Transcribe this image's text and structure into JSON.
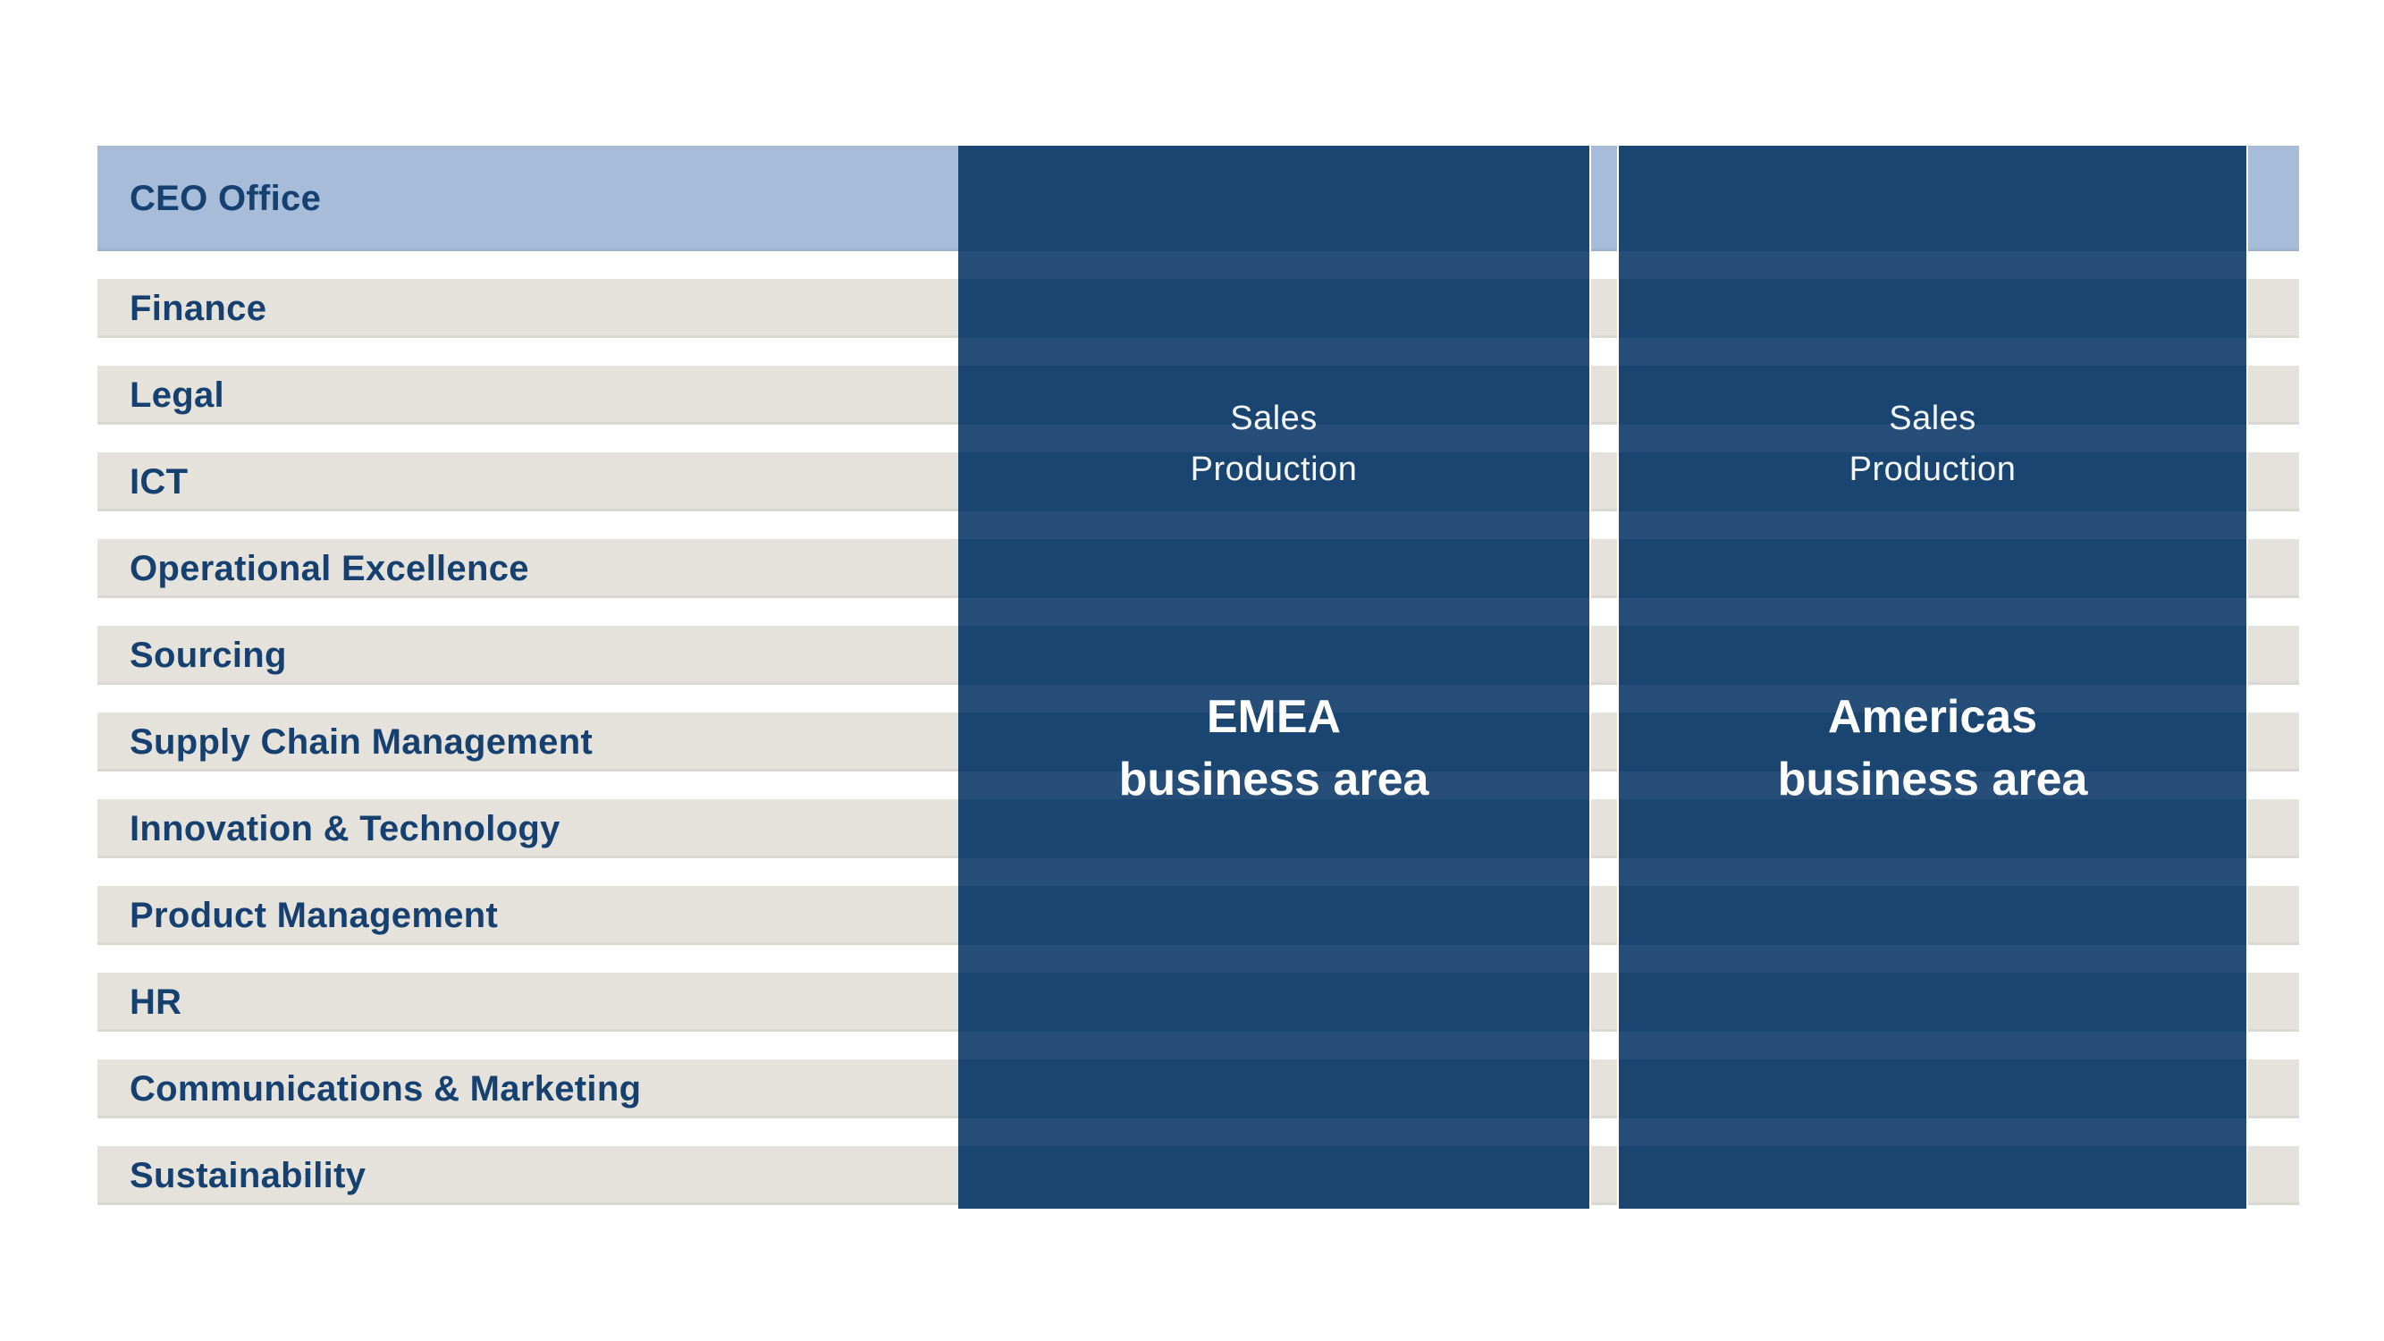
{
  "departments": [
    {
      "label": "CEO Office",
      "highlighted": true
    },
    {
      "label": "Finance",
      "highlighted": false
    },
    {
      "label": "Legal",
      "highlighted": false
    },
    {
      "label": "ICT",
      "highlighted": false
    },
    {
      "label": "Operational Excellence",
      "highlighted": false
    },
    {
      "label": "Sourcing",
      "highlighted": false
    },
    {
      "label": "Supply Chain Management",
      "highlighted": false
    },
    {
      "label": "Innovation & Technology",
      "highlighted": false
    },
    {
      "label": "Product Management",
      "highlighted": false
    },
    {
      "label": "HR",
      "highlighted": false
    },
    {
      "label": "Communications & Marketing",
      "highlighted": false
    },
    {
      "label": "Sustainability",
      "highlighted": false
    }
  ],
  "business_areas": [
    {
      "name": "EMEA",
      "functions": "Sales\nProduction",
      "title": "EMEA\nbusiness area"
    },
    {
      "name": "Americas",
      "functions": "Sales\nProduction",
      "title": "Americas\nbusiness area"
    }
  ],
  "colors": {
    "background": "#ffffff",
    "row": "#e4e2db",
    "highlight_row": "#a7bcd9",
    "row_text": "#164070",
    "column": "#1b4571",
    "column_text": "#ffffff",
    "column_subtext": "#f3f6f9",
    "column_stripe": "rgba(255,255,255,0.05)"
  }
}
